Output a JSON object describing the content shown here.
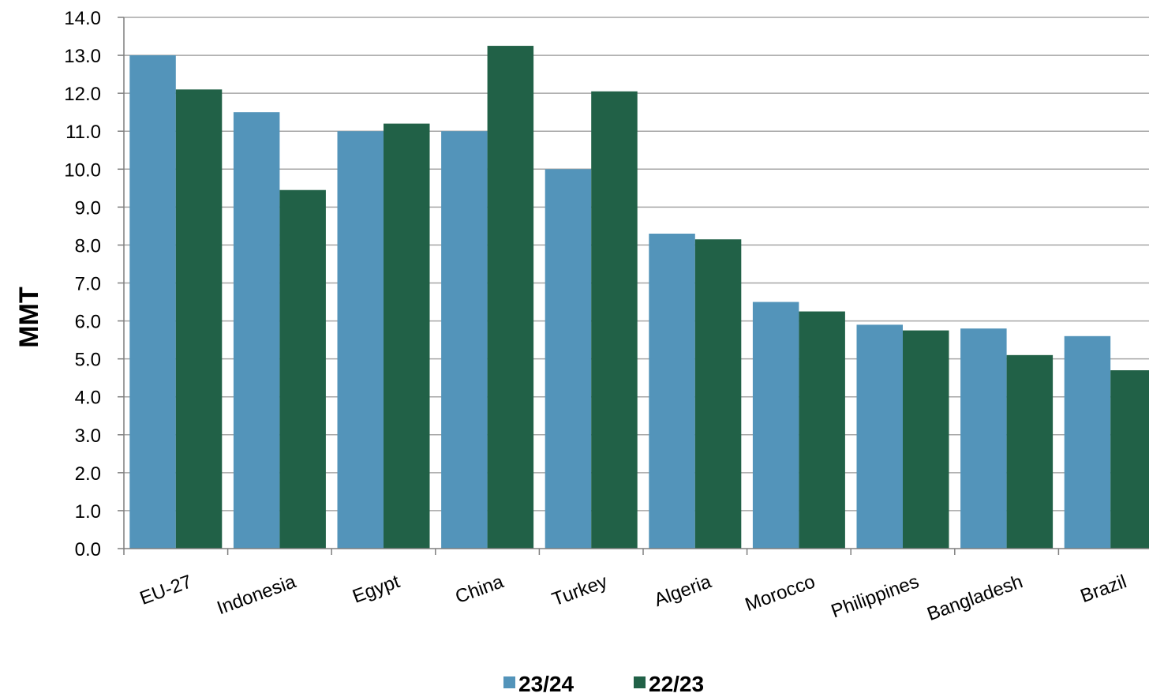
{
  "chart_data": {
    "type": "bar",
    "ylabel": "MMT",
    "ylim": [
      0,
      14
    ],
    "ytick_step": 1,
    "yticks": [
      "0.0",
      "1.0",
      "2.0",
      "3.0",
      "4.0",
      "5.0",
      "6.0",
      "7.0",
      "8.0",
      "9.0",
      "10.0",
      "11.0",
      "12.0",
      "13.0",
      "14.0"
    ],
    "grid": true,
    "legend_position": "bottom",
    "categories": [
      "EU-27",
      "Indonesia",
      "Egypt",
      "China",
      "Turkey",
      "Algeria",
      "Morocco",
      "Philippines",
      "Bangladesh",
      "Brazil"
    ],
    "series": [
      {
        "name": "23/24",
        "color": "#5394BA",
        "values": [
          13.0,
          11.5,
          11.0,
          11.0,
          10.0,
          8.3,
          6.5,
          5.9,
          5.8,
          5.6
        ]
      },
      {
        "name": "22/23",
        "color": "#216147",
        "values": [
          12.1,
          9.45,
          11.2,
          13.25,
          12.05,
          8.15,
          6.25,
          5.75,
          5.1,
          4.7
        ]
      }
    ]
  }
}
